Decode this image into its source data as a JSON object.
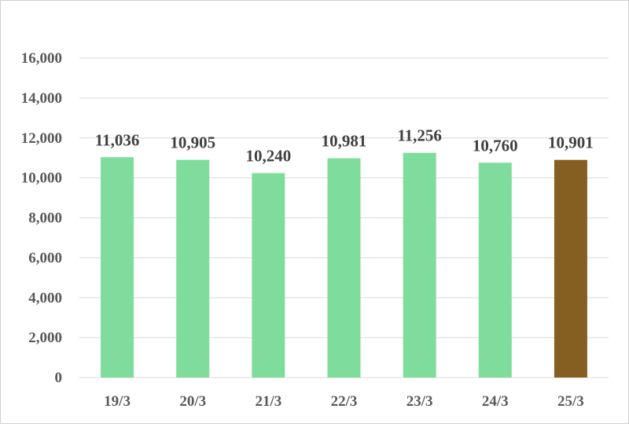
{
  "chart_data": {
    "type": "bar",
    "categories": [
      "19/3",
      "20/3",
      "21/3",
      "22/3",
      "23/3",
      "24/3",
      "25/3"
    ],
    "values": [
      11036,
      10905,
      10240,
      10981,
      11256,
      10760,
      10901
    ],
    "value_labels": [
      "11,036",
      "10,905",
      "10,240",
      "10,981",
      "11,256",
      "10,760",
      "10,901"
    ],
    "ylim": [
      0,
      16000
    ],
    "yticks": [
      0,
      2000,
      4000,
      6000,
      8000,
      10000,
      12000,
      14000,
      16000
    ],
    "ytick_labels": [
      "0",
      "2,000",
      "4,000",
      "6,000",
      "8,000",
      "10,000",
      "12,000",
      "14,000",
      "16,000"
    ],
    "grid": true,
    "legend": "none",
    "colors": {
      "bar": "#7fdc9c",
      "highlight_bar": "#855e22",
      "grid": "#d9d9d9",
      "axis_text": "#595959",
      "data_label_text": "#404040"
    },
    "highlight_index": 6
  }
}
